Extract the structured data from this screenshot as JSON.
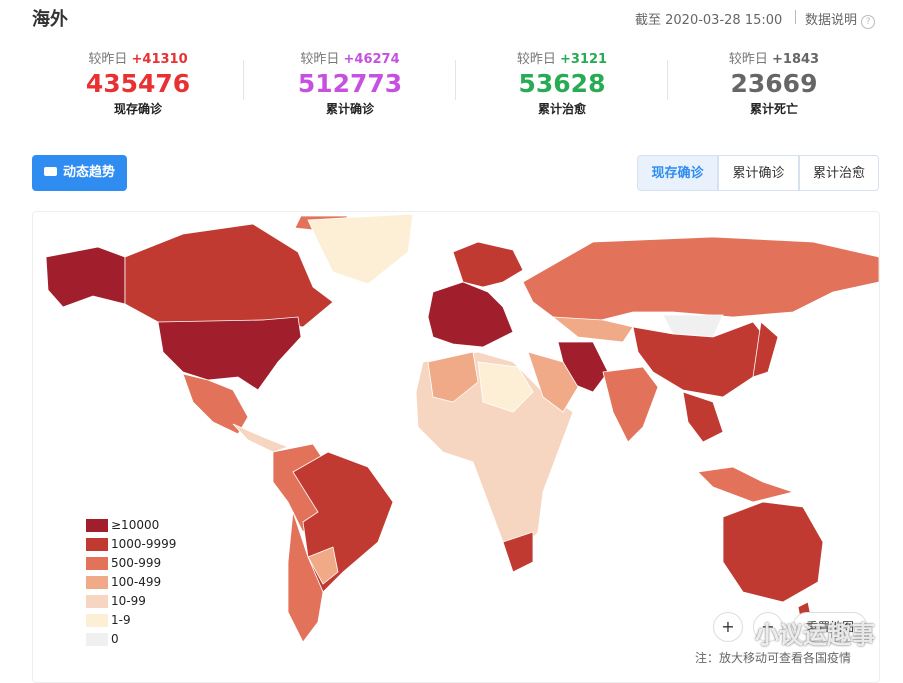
{
  "header": {
    "title": "海外",
    "date": "截至 2020-03-28 15:00",
    "help": "数据说明"
  },
  "stats": [
    {
      "label": "较昨日",
      "delta": "+41310",
      "value": "435476",
      "name": "现存确诊",
      "color": "#e83132"
    },
    {
      "label": "较昨日",
      "delta": "+46274",
      "value": "512773",
      "name": "累计确诊",
      "color": "#c650e0"
    },
    {
      "label": "较昨日",
      "delta": "+3121",
      "value": "53628",
      "name": "累计治愈",
      "color": "#27ab54"
    },
    {
      "label": "较昨日",
      "delta": "+1843",
      "value": "23669",
      "name": "累计死亡",
      "color": "#666666"
    }
  ],
  "trend_button": "动态趋势",
  "tabs": [
    "现存确诊",
    "累计确诊",
    "累计治愈"
  ],
  "legend": [
    {
      "label": "≥10000",
      "color": "#a11f2c"
    },
    {
      "label": "1000-9999",
      "color": "#c13a31"
    },
    {
      "label": "500-999",
      "color": "#e2735a"
    },
    {
      "label": "100-499",
      "color": "#f0aa88"
    },
    {
      "label": "10-99",
      "color": "#f6d6c0"
    },
    {
      "label": "1-9",
      "color": "#fcefd6"
    },
    {
      "label": "0",
      "color": "#f0f0f0"
    }
  ],
  "controls": {
    "zoom_in": "+",
    "zoom_out": "−",
    "reset": "重置地图"
  },
  "note": "注：放大移动可查看各国疫情",
  "watermark": "小议运趣事"
}
